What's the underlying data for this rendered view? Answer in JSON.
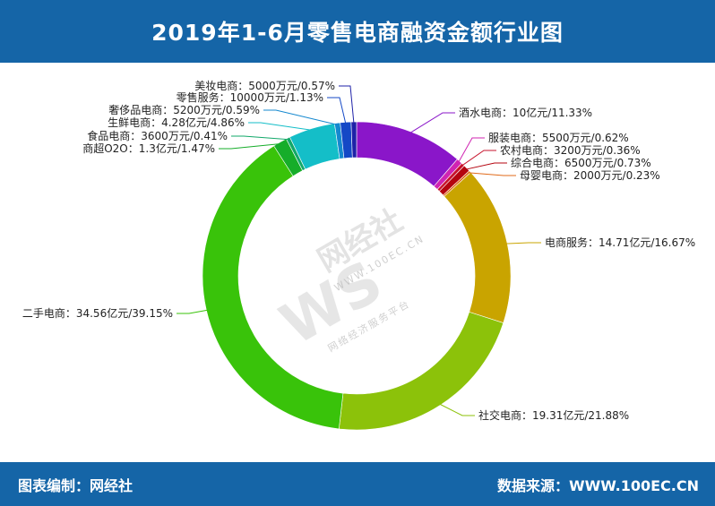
{
  "header": {
    "title": "2019年1-6月零售电商融资金额行业图"
  },
  "footer": {
    "left": "图表编制：网经社",
    "right": "数据来源：WWW.100EC.CN"
  },
  "watermark": {
    "logo": "WS",
    "name": "网经社",
    "url": "WWW.100EC.CN",
    "slogan": "网络经济服务平台"
  },
  "colors": {
    "header_bg": "#1565a7"
  },
  "chart_data": {
    "type": "pie",
    "donut": true,
    "unit": "亿元",
    "slices": [
      {
        "name": "酒水电商",
        "label": "酒水电商：10亿元/11.33%",
        "value": 10,
        "percent": 11.33,
        "color": "#8a16c9"
      },
      {
        "name": "服装电商",
        "label": "服装电商：5500万元/0.62%",
        "value": 0.55,
        "percent": 0.62,
        "color": "#d024b2"
      },
      {
        "name": "农村电商",
        "label": "农村电商：3200万元/0.36%",
        "value": 0.32,
        "percent": 0.36,
        "color": "#c7132c"
      },
      {
        "name": "综合电商",
        "label": "综合电商：6500万元/0.73%",
        "value": 0.65,
        "percent": 0.73,
        "color": "#b4040f"
      },
      {
        "name": "母婴电商",
        "label": "母婴电商：2000万元/0.23%",
        "value": 0.2,
        "percent": 0.23,
        "color": "#e06a1a"
      },
      {
        "name": "电商服务",
        "label": "电商服务：14.71亿元/16.67%",
        "value": 14.71,
        "percent": 16.67,
        "color": "#c9a400"
      },
      {
        "name": "社交电商",
        "label": "社交电商：19.31亿元/21.88%",
        "value": 19.31,
        "percent": 21.88,
        "color": "#8cc20a"
      },
      {
        "name": "二手电商",
        "label": "二手电商：34.56亿元/39.15%",
        "value": 34.56,
        "percent": 39.15,
        "color": "#39c30a"
      },
      {
        "name": "商超O2O",
        "label": "商超O2O：1.3亿元/1.47%",
        "value": 1.3,
        "percent": 1.47,
        "color": "#16ad2a"
      },
      {
        "name": "食品电商",
        "label": "食品电商：3600万元/0.41%",
        "value": 0.36,
        "percent": 0.41,
        "color": "#12a86a"
      },
      {
        "name": "生鲜电商",
        "label": "生鲜电商：4.28亿元/4.86%",
        "value": 4.28,
        "percent": 4.86,
        "color": "#14bec8"
      },
      {
        "name": "奢侈品电商",
        "label": "奢侈品电商：5200万元/0.59%",
        "value": 0.52,
        "percent": 0.59,
        "color": "#1488cf"
      },
      {
        "name": "零售服务",
        "label": "零售服务：10000万元/1.13%",
        "value": 1.0,
        "percent": 1.13,
        "color": "#1448c6"
      },
      {
        "name": "美妆电商",
        "label": "美妆电商：5000万元/0.57%",
        "value": 0.5,
        "percent": 0.57,
        "color": "#1f22a8"
      }
    ]
  }
}
